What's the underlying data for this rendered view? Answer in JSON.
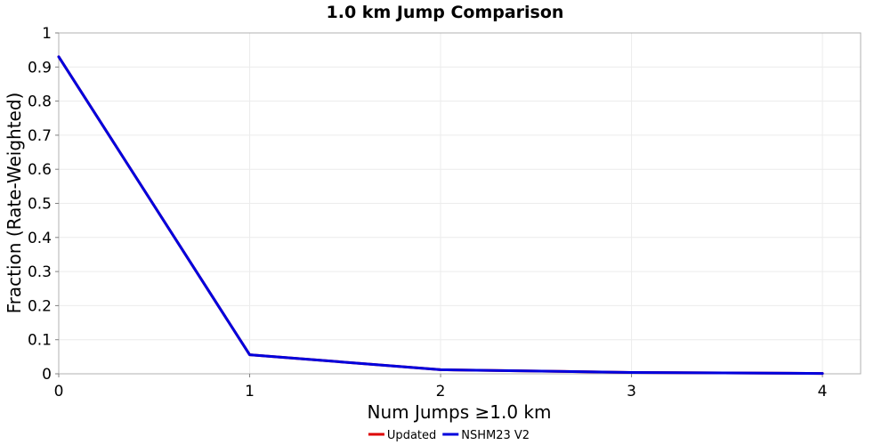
{
  "chart_data": {
    "type": "line",
    "title": "1.0 km Jump Comparison",
    "xlabel": "Num Jumps ≥1.0 km",
    "ylabel": "Fraction (Rate-Weighted)",
    "xlim": [
      0,
      4.2
    ],
    "ylim": [
      0,
      1
    ],
    "x_ticks": [
      "0",
      "1",
      "2",
      "3",
      "4"
    ],
    "y_ticks": [
      "0",
      "0.1",
      "0.2",
      "0.3",
      "0.4",
      "0.5",
      "0.6",
      "0.7",
      "0.8",
      "0.9",
      "1"
    ],
    "grid": true,
    "legend_position": "bottom-center",
    "x": [
      0,
      1,
      2,
      3,
      4
    ],
    "series": [
      {
        "name": "Updated",
        "color": "#dd0000",
        "values": [
          0.93,
          0.056,
          0.012,
          0.004,
          0.001
        ]
      },
      {
        "name": "NSHM23 V2",
        "color": "#0000dd",
        "values": [
          0.93,
          0.056,
          0.012,
          0.004,
          0.001
        ]
      }
    ]
  }
}
